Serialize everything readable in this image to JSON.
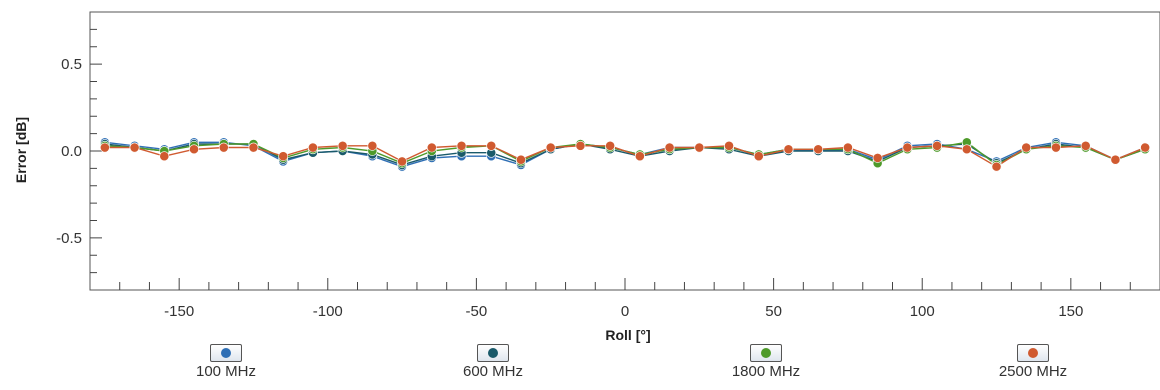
{
  "chart_data": {
    "type": "line",
    "title": "",
    "xlabel": "Roll [°]",
    "ylabel": "Error [dB]",
    "xlim": [
      -180,
      180
    ],
    "ylim": [
      -0.8,
      0.8
    ],
    "xticks": [
      -150,
      -100,
      -50,
      0,
      50,
      100,
      150
    ],
    "yticks": [
      -0.5,
      0.0,
      0.5
    ],
    "ytick_labels": [
      "-0.5",
      "0.0",
      "0.5"
    ],
    "grid": true,
    "legend_position": "bottom",
    "x": [
      -175,
      -165,
      -155,
      -145,
      -135,
      -125,
      -115,
      -105,
      -95,
      -85,
      -75,
      -65,
      -55,
      -45,
      -35,
      -25,
      -15,
      -5,
      5,
      15,
      25,
      35,
      45,
      55,
      65,
      75,
      85,
      95,
      105,
      115,
      125,
      135,
      145,
      155,
      165,
      175
    ],
    "series": [
      {
        "name": "100 MHz",
        "color": "#2f6fb5",
        "values": [
          0.05,
          0.03,
          0.01,
          0.05,
          0.05,
          0.03,
          -0.06,
          -0.01,
          0.0,
          -0.03,
          -0.09,
          -0.04,
          -0.03,
          -0.03,
          -0.08,
          0.01,
          0.04,
          0.02,
          -0.02,
          0.02,
          0.02,
          0.02,
          -0.02,
          0.01,
          0.0,
          0.01,
          -0.05,
          0.03,
          0.04,
          0.01,
          -0.06,
          0.02,
          0.05,
          0.03,
          -0.05,
          0.02
        ]
      },
      {
        "name": "600 MHz",
        "color": "#1a5a6a",
        "values": [
          0.04,
          0.02,
          0.0,
          0.04,
          0.04,
          0.04,
          -0.05,
          -0.01,
          0.0,
          -0.02,
          -0.08,
          -0.03,
          -0.01,
          -0.01,
          -0.07,
          0.01,
          0.04,
          0.01,
          -0.03,
          0.0,
          0.02,
          0.01,
          -0.03,
          0.0,
          0.0,
          0.0,
          -0.06,
          0.02,
          0.03,
          0.04,
          -0.07,
          0.01,
          0.04,
          0.02,
          -0.05,
          0.01
        ]
      },
      {
        "name": "1800 MHz",
        "color": "#4e9a2a",
        "values": [
          0.03,
          0.02,
          0.0,
          0.03,
          0.04,
          0.04,
          -0.04,
          0.01,
          0.02,
          0.0,
          -0.07,
          0.0,
          0.02,
          0.03,
          -0.06,
          0.02,
          0.04,
          0.02,
          -0.02,
          0.01,
          0.02,
          0.02,
          -0.02,
          0.01,
          0.01,
          0.01,
          -0.07,
          0.01,
          0.02,
          0.05,
          -0.08,
          0.01,
          0.03,
          0.02,
          -0.05,
          0.01
        ]
      },
      {
        "name": "2500 MHz",
        "color": "#d05a30",
        "values": [
          0.02,
          0.02,
          -0.03,
          0.01,
          0.02,
          0.02,
          -0.03,
          0.02,
          0.03,
          0.03,
          -0.06,
          0.02,
          0.03,
          0.03,
          -0.05,
          0.02,
          0.03,
          0.03,
          -0.03,
          0.02,
          0.02,
          0.03,
          -0.03,
          0.01,
          0.01,
          0.02,
          -0.04,
          0.02,
          0.03,
          0.01,
          -0.09,
          0.02,
          0.02,
          0.03,
          -0.05,
          0.02
        ]
      }
    ]
  }
}
